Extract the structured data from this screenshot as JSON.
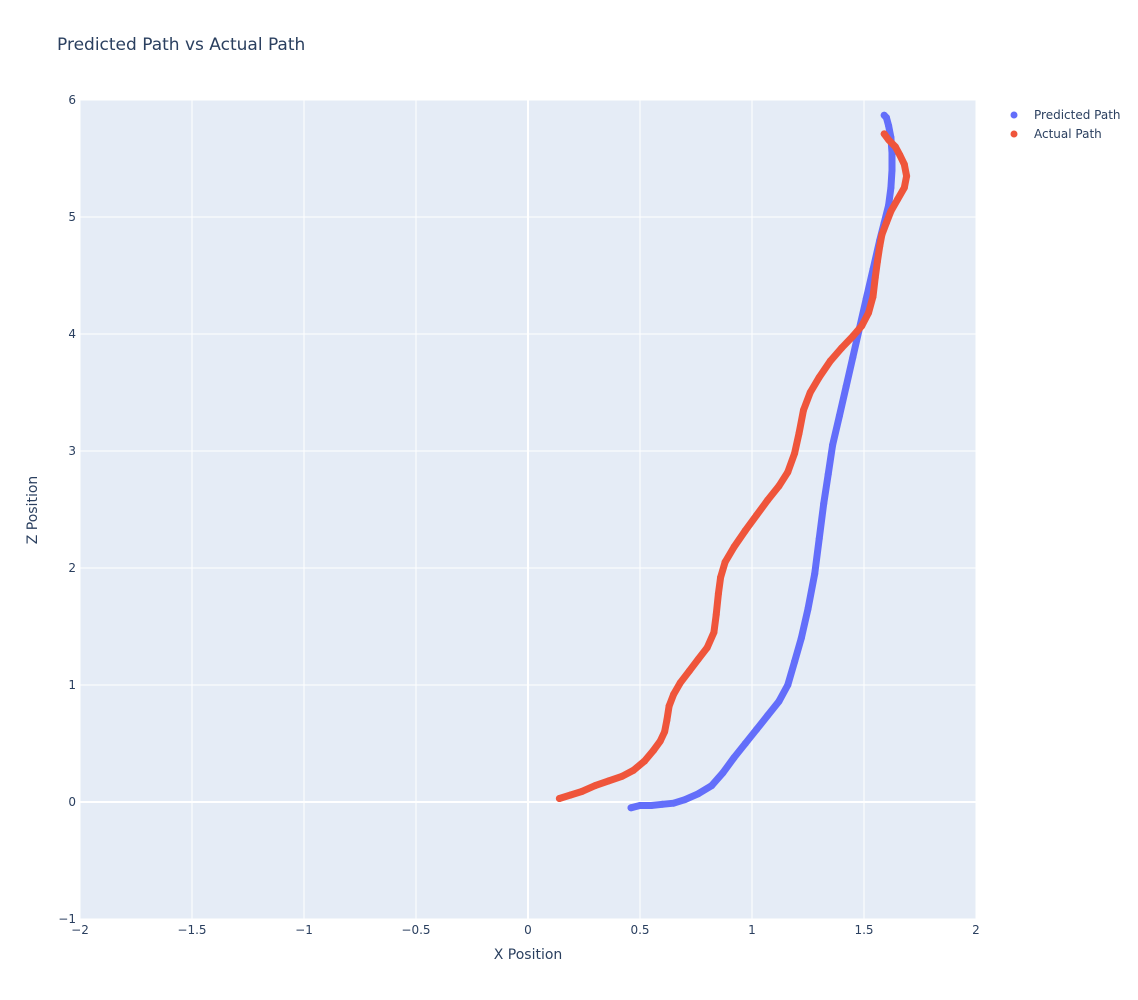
{
  "chart_data": {
    "type": "scatter",
    "title": "Predicted Path vs Actual Path",
    "xlabel": "X Position",
    "ylabel": "Z Position",
    "xlim": [
      -2,
      2
    ],
    "ylim": [
      -1,
      6
    ],
    "x_ticks": [
      -2,
      -1.5,
      -1,
      -0.5,
      0,
      0.5,
      1,
      1.5,
      2
    ],
    "x_tick_labels": [
      "−2",
      "−1.5",
      "−1",
      "−0.5",
      "0",
      "0.5",
      "1",
      "1.5",
      "2"
    ],
    "y_ticks": [
      -1,
      0,
      1,
      2,
      3,
      4,
      5,
      6
    ],
    "y_tick_labels": [
      "−1",
      "0",
      "1",
      "2",
      "3",
      "4",
      "5",
      "6"
    ],
    "grid": true,
    "legend_position": "top-right",
    "background_color": "#e5ecf6",
    "series": [
      {
        "name": "Predicted Path",
        "color": "#636efa",
        "x": [
          0.46,
          0.5,
          0.55,
          0.6,
          0.65,
          0.7,
          0.76,
          0.82,
          0.87,
          0.92,
          0.97,
          1.02,
          1.07,
          1.12,
          1.16,
          1.19,
          1.22,
          1.25,
          1.28,
          1.3,
          1.32,
          1.34,
          1.36,
          1.39,
          1.42,
          1.45,
          1.48,
          1.51,
          1.54,
          1.57,
          1.59,
          1.61,
          1.62,
          1.625,
          1.625,
          1.62,
          1.61,
          1.6,
          1.59
        ],
        "y": [
          -0.05,
          -0.03,
          -0.03,
          -0.02,
          -0.01,
          0.02,
          0.07,
          0.14,
          0.25,
          0.38,
          0.5,
          0.62,
          0.74,
          0.86,
          1.0,
          1.2,
          1.4,
          1.65,
          1.95,
          2.25,
          2.55,
          2.8,
          3.05,
          3.3,
          3.55,
          3.8,
          4.05,
          4.3,
          4.55,
          4.8,
          4.95,
          5.1,
          5.25,
          5.4,
          5.55,
          5.68,
          5.78,
          5.85,
          5.87
        ]
      },
      {
        "name": "Actual Path",
        "color": "#ef553b",
        "x": [
          0.14,
          0.19,
          0.24,
          0.3,
          0.36,
          0.42,
          0.47,
          0.52,
          0.56,
          0.59,
          0.61,
          0.62,
          0.63,
          0.65,
          0.68,
          0.72,
          0.76,
          0.8,
          0.83,
          0.84,
          0.85,
          0.86,
          0.88,
          0.92,
          0.97,
          1.02,
          1.07,
          1.12,
          1.16,
          1.19,
          1.21,
          1.23,
          1.26,
          1.3,
          1.35,
          1.4,
          1.45,
          1.49,
          1.52,
          1.54,
          1.55,
          1.56,
          1.57,
          1.58,
          1.6,
          1.62,
          1.65,
          1.68,
          1.69,
          1.68,
          1.66,
          1.64,
          1.61,
          1.59
        ],
        "y": [
          0.03,
          0.06,
          0.09,
          0.14,
          0.18,
          0.22,
          0.27,
          0.35,
          0.44,
          0.52,
          0.6,
          0.7,
          0.82,
          0.92,
          1.02,
          1.12,
          1.22,
          1.32,
          1.45,
          1.6,
          1.78,
          1.92,
          2.05,
          2.18,
          2.32,
          2.45,
          2.58,
          2.7,
          2.82,
          2.98,
          3.15,
          3.35,
          3.5,
          3.63,
          3.77,
          3.88,
          3.98,
          4.07,
          4.18,
          4.32,
          4.48,
          4.62,
          4.75,
          4.85,
          4.95,
          5.05,
          5.15,
          5.25,
          5.35,
          5.45,
          5.53,
          5.6,
          5.66,
          5.71
        ]
      }
    ]
  }
}
